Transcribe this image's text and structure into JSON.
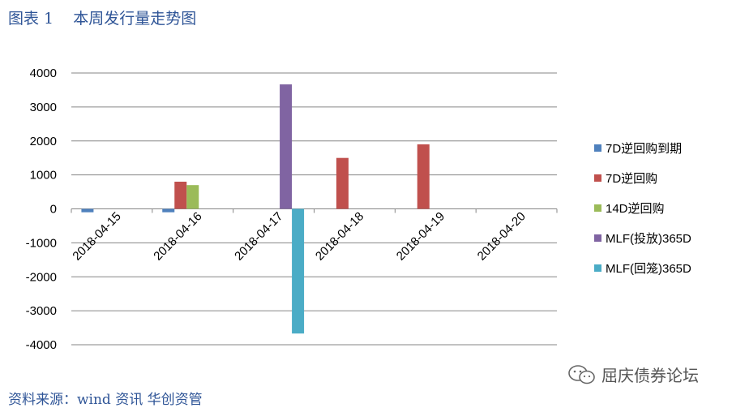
{
  "header": {
    "title": "图表 1    本周发行量走势图"
  },
  "chart_data": {
    "type": "bar",
    "categories": [
      "2018-04-15",
      "2018-04-16",
      "2018-04-17",
      "2018-04-18",
      "2018-04-19",
      "2018-04-20"
    ],
    "ylim": [
      -4000,
      4000
    ],
    "yticks": [
      4000,
      3000,
      2000,
      1000,
      0,
      -1000,
      -2000,
      -3000,
      -4000
    ],
    "grid": true,
    "legend_position": "right",
    "series": [
      {
        "name": "7D逆回购到期",
        "color": "#4f81bd",
        "values": [
          -100,
          -100,
          0,
          0,
          0,
          0
        ]
      },
      {
        "name": "7D逆回购",
        "color": "#c0504d",
        "values": [
          0,
          800,
          0,
          1500,
          1900,
          0
        ]
      },
      {
        "name": "14D逆回购",
        "color": "#9bbb59",
        "values": [
          0,
          700,
          0,
          0,
          0,
          0
        ]
      },
      {
        "name": "MLF(投放)365D",
        "color": "#8064a2",
        "values": [
          0,
          0,
          3665,
          0,
          0,
          0
        ]
      },
      {
        "name": "MLF(回笼)365D",
        "color": "#4bacc6",
        "values": [
          0,
          0,
          -3670,
          0,
          0,
          0
        ]
      }
    ]
  },
  "footer": {
    "source": "资料来源：wind 资讯 华创资管"
  },
  "watermark": {
    "text": "屈庆债券论坛",
    "icon": "wechat-icon"
  }
}
